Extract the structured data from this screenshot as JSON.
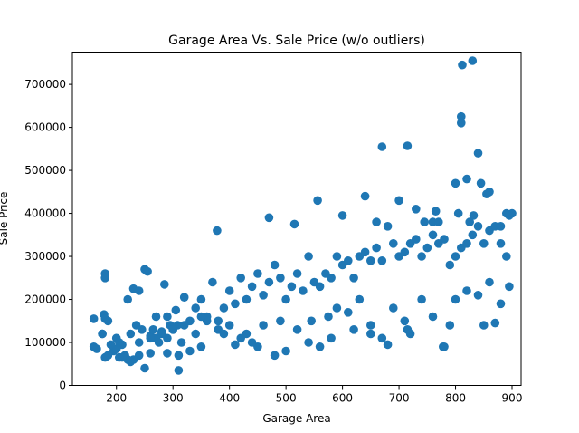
{
  "chart_data": {
    "type": "scatter",
    "title": "Garage Area Vs. Sale Price (w/o outliers)",
    "xlabel": "Garage Area",
    "ylabel": "Sale Price",
    "xlim": [
      122,
      916
    ],
    "ylim": [
      0,
      775000
    ],
    "xticks": [
      200,
      300,
      400,
      500,
      600,
      700,
      800,
      900
    ],
    "yticks": [
      0,
      100000,
      200000,
      300000,
      400000,
      500000,
      600000,
      700000
    ],
    "grid": false,
    "color": "#1f77b4",
    "x": [
      160,
      160,
      165,
      175,
      178,
      180,
      185,
      195,
      200,
      205,
      210,
      215,
      220,
      225,
      230,
      235,
      240,
      245,
      250,
      255,
      260,
      265,
      270,
      275,
      280,
      285,
      290,
      295,
      300,
      305,
      310,
      315,
      320,
      330,
      340,
      350,
      360,
      370,
      380,
      390,
      400,
      410,
      420,
      430,
      440,
      450,
      460,
      470,
      480,
      490,
      500,
      510,
      520,
      530,
      540,
      550,
      560,
      570,
      580,
      590,
      600,
      610,
      620,
      630,
      640,
      650,
      660,
      670,
      680,
      690,
      700,
      710,
      720,
      730,
      740,
      750,
      760,
      770,
      780,
      790,
      800,
      810,
      820,
      830,
      840,
      850,
      860,
      870,
      880,
      890,
      900,
      830,
      812,
      840,
      810,
      890,
      180,
      180,
      250,
      290,
      308,
      378,
      470,
      515,
      556,
      600,
      640,
      660,
      670,
      700,
      715,
      730,
      745,
      760,
      765,
      770,
      778,
      790,
      800,
      805,
      820,
      825,
      832,
      845,
      855,
      860,
      880,
      895,
      810,
      670,
      715,
      480,
      410,
      450,
      500,
      540,
      560,
      580,
      620,
      650,
      680,
      720,
      780,
      850,
      870,
      290,
      310,
      330,
      350,
      270,
      260,
      240,
      230,
      225,
      220,
      210,
      205,
      200,
      190,
      185,
      180,
      175,
      575,
      590,
      610,
      630,
      650,
      690,
      710,
      740,
      760,
      800,
      820,
      840,
      860,
      880,
      895,
      430,
      460,
      490,
      520,
      545,
      380,
      390,
      400,
      420,
      440,
      360,
      350,
      340,
      320,
      300,
      280,
      260,
      240
    ],
    "y": [
      155000,
      90000,
      85000,
      120000,
      165000,
      260000,
      150000,
      80000,
      110000,
      65000,
      95000,
      70000,
      200000,
      120000,
      225000,
      140000,
      220000,
      130000,
      40000,
      265000,
      115000,
      130000,
      160000,
      100000,
      125000,
      235000,
      110000,
      140000,
      130000,
      175000,
      35000,
      100000,
      205000,
      150000,
      180000,
      200000,
      160000,
      240000,
      150000,
      180000,
      220000,
      190000,
      250000,
      200000,
      230000,
      260000,
      210000,
      240000,
      280000,
      250000,
      200000,
      230000,
      260000,
      220000,
      300000,
      240000,
      230000,
      260000,
      250000,
      300000,
      280000,
      290000,
      250000,
      300000,
      310000,
      290000,
      320000,
      290000,
      370000,
      330000,
      300000,
      310000,
      330000,
      340000,
      300000,
      320000,
      350000,
      330000,
      340000,
      280000,
      300000,
      320000,
      330000,
      350000,
      370000,
      330000,
      360000,
      370000,
      330000,
      300000,
      400000,
      755000,
      745000,
      540000,
      625000,
      400000,
      250000,
      155000,
      270000,
      160000,
      140000,
      360000,
      390000,
      375000,
      430000,
      395000,
      440000,
      380000,
      555000,
      430000,
      557000,
      410000,
      380000,
      380000,
      405000,
      380000,
      90000,
      140000,
      470000,
      400000,
      480000,
      380000,
      395000,
      470000,
      445000,
      450000,
      370000,
      395000,
      610000,
      110000,
      130000,
      70000,
      95000,
      90000,
      80000,
      100000,
      90000,
      110000,
      130000,
      120000,
      95000,
      120000,
      90000,
      140000,
      145000,
      75000,
      70000,
      80000,
      90000,
      110000,
      75000,
      70000,
      60000,
      55000,
      60000,
      65000,
      100000,
      85000,
      95000,
      70000,
      65000,
      120000,
      160000,
      180000,
      170000,
      200000,
      140000,
      180000,
      150000,
      200000,
      160000,
      200000,
      220000,
      210000,
      240000,
      190000,
      230000,
      120000,
      140000,
      150000,
      130000,
      150000,
      130000,
      120000,
      140000,
      110000,
      100000,
      150000,
      160000,
      120000,
      140000,
      130000,
      120000,
      110000,
      100000
    ]
  }
}
